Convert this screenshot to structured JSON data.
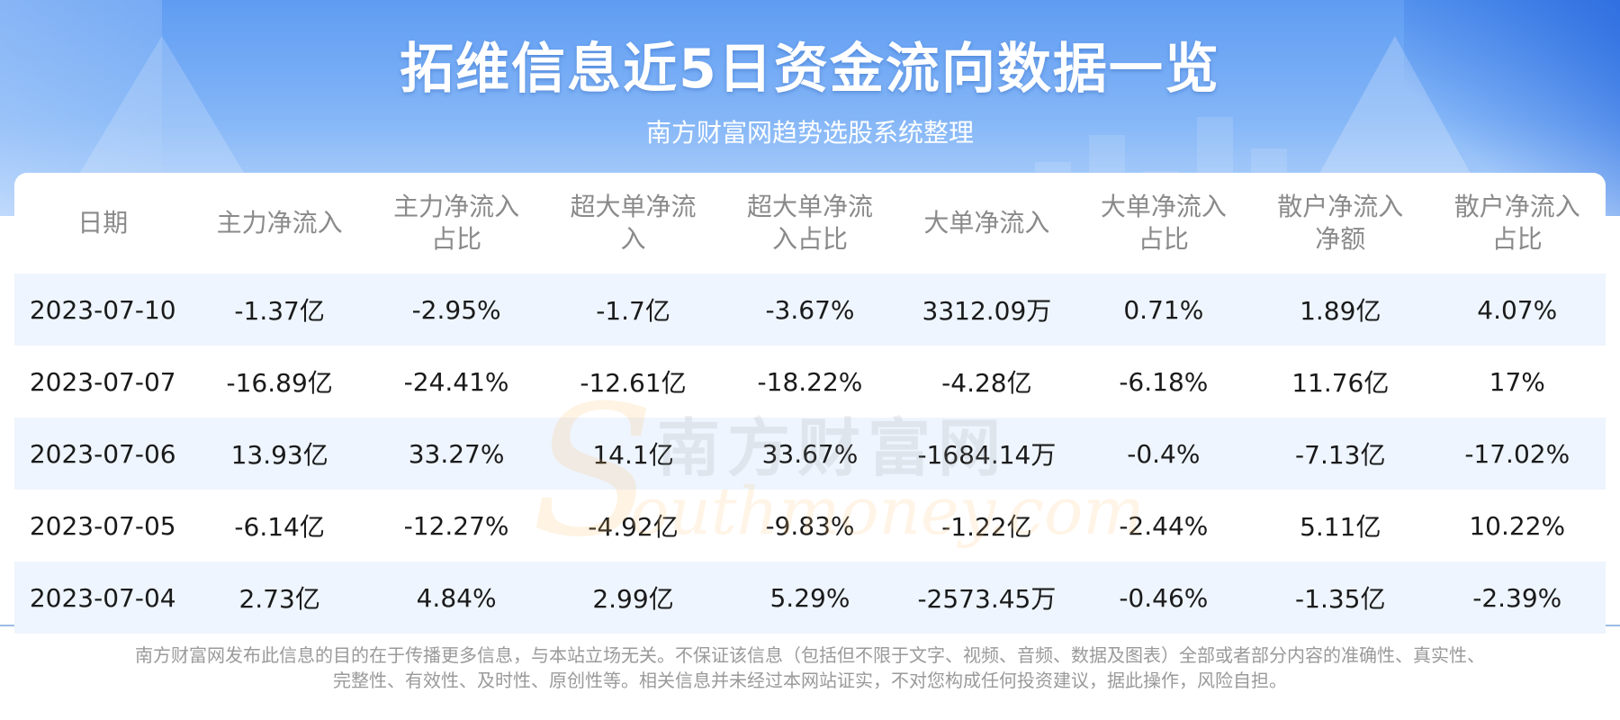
{
  "title": "拓维信息近5日资金流向数据一览",
  "subtitle": "南方财富网趋势选股系统整理",
  "table": {
    "headers": [
      [
        "日期"
      ],
      [
        "主力净流入"
      ],
      [
        "主力净流入",
        "占比"
      ],
      [
        "超大单净流",
        "入"
      ],
      [
        "超大单净流",
        "入占比"
      ],
      [
        "大单净流入"
      ],
      [
        "大单净流入",
        "占比"
      ],
      [
        "散户净流入",
        "净额"
      ],
      [
        "散户净流入",
        "占比"
      ]
    ],
    "rows": [
      [
        "2023-07-10",
        "-1.37亿",
        "-2.95%",
        "-1.7亿",
        "-3.67%",
        "3312.09万",
        "0.71%",
        "1.89亿",
        "4.07%"
      ],
      [
        "2023-07-07",
        "-16.89亿",
        "-24.41%",
        "-12.61亿",
        "-18.22%",
        "-4.28亿",
        "-6.18%",
        "11.76亿",
        "17%"
      ],
      [
        "2023-07-06",
        "13.93亿",
        "33.27%",
        "14.1亿",
        "33.67%",
        "-1684.14万",
        "-0.4%",
        "-7.13亿",
        "-17.02%"
      ],
      [
        "2023-07-05",
        "-6.14亿",
        "-12.27%",
        "-4.92亿",
        "-9.83%",
        "-1.22亿",
        "-2.44%",
        "5.11亿",
        "10.22%"
      ],
      [
        "2023-07-04",
        "2.73亿",
        "4.84%",
        "2.99亿",
        "5.29%",
        "-2573.45万",
        "-0.46%",
        "-1.35亿",
        "-2.39%"
      ]
    ]
  },
  "watermark": {
    "cn": "南方财富网",
    "letter": "S",
    "en": "outhmoney.com"
  },
  "disclaimer": [
    "南方财富网发布此信息的目的在于传播更多信息，与本站立场无关。不保证该信息（包括但不限于文字、视频、音频、数据及图表）全部或者部分内容的准确性、真实性、",
    "完整性、有效性、及时性、原创性等。相关信息并未经过本网站证实，不对您构成任何投资建议，据此操作，风险自担。"
  ],
  "colors": {
    "header_blue": "#5f9cf2",
    "row_alt": "#eef5fe",
    "header_text": "#8a8a8a"
  }
}
